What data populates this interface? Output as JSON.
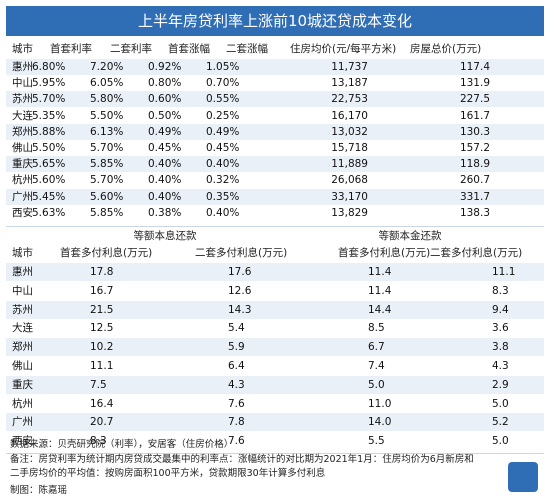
{
  "header": {
    "title": "上半年房贷利率上涨前10城还贷成本变化"
  },
  "table1": {
    "columns": [
      "城市",
      "首套利率",
      "二套利率",
      "首套涨幅",
      "二套涨幅",
      "住房均价(元/每平方米)",
      "房屋总价(万元)"
    ],
    "rows": [
      [
        "惠州",
        "6.80%",
        "7.20%",
        "0.92%",
        "1.05%",
        "11,737",
        "117.4"
      ],
      [
        "中山",
        "5.95%",
        "6.05%",
        "0.80%",
        "0.70%",
        "13,187",
        "131.9"
      ],
      [
        "苏州",
        "5.70%",
        "5.80%",
        "0.60%",
        "0.55%",
        "22,753",
        "227.5"
      ],
      [
        "大连",
        "5.35%",
        "5.50%",
        "0.50%",
        "0.25%",
        "16,170",
        "161.7"
      ],
      [
        "郑州",
        "5.88%",
        "6.13%",
        "0.49%",
        "0.49%",
        "13,032",
        "130.3"
      ],
      [
        "佛山",
        "5.50%",
        "5.70%",
        "0.45%",
        "0.45%",
        "15,718",
        "157.2"
      ],
      [
        "重庆",
        "5.65%",
        "5.85%",
        "0.40%",
        "0.40%",
        "11,889",
        "118.9"
      ],
      [
        "杭州",
        "5.60%",
        "5.70%",
        "0.40%",
        "0.32%",
        "26,068",
        "260.7"
      ],
      [
        "广州",
        "5.45%",
        "5.60%",
        "0.40%",
        "0.35%",
        "33,170",
        "331.7"
      ],
      [
        "西安",
        "5.63%",
        "5.85%",
        "0.38%",
        "0.40%",
        "13,829",
        "138.3"
      ]
    ]
  },
  "table2": {
    "groups": [
      "等额本息还款",
      "等额本金还款"
    ],
    "columns": [
      "城市",
      "首套多付利息(万元)",
      "二套多付利息(万元)",
      "首套多付利息(万元)",
      "二套多付利息(万元)"
    ],
    "rows": [
      [
        "惠州",
        "17.8",
        "17.6",
        "11.4",
        "11.1"
      ],
      [
        "中山",
        "16.7",
        "12.6",
        "11.4",
        "8.3"
      ],
      [
        "苏州",
        "21.5",
        "14.3",
        "14.4",
        "9.4"
      ],
      [
        "大连",
        "12.5",
        "5.4",
        "8.5",
        "3.6"
      ],
      [
        "郑州",
        "10.2",
        "5.9",
        "6.7",
        "3.8"
      ],
      [
        "佛山",
        "11.1",
        "6.4",
        "7.4",
        "4.3"
      ],
      [
        "重庆",
        "7.5",
        "4.3",
        "5.0",
        "2.9"
      ],
      [
        "杭州",
        "16.4",
        "7.6",
        "11.0",
        "5.0"
      ],
      [
        "广州",
        "20.7",
        "7.8",
        "14.0",
        "5.2"
      ],
      [
        "西安",
        "8.3",
        "7.6",
        "5.5",
        "5.0"
      ]
    ]
  },
  "notes": [
    "数据来源：贝壳研究院（利率），安居客（住房价格）",
    "备注：房贷利率为统计期内房贷成交最集中的利率点：涨幅统计的对比期为2021年1月：住房均价为6月新房和二手房均价的平均值：按购房面积100平方米，贷款期限30年计算多付利息",
    "制图：陈嘉瑶"
  ]
}
